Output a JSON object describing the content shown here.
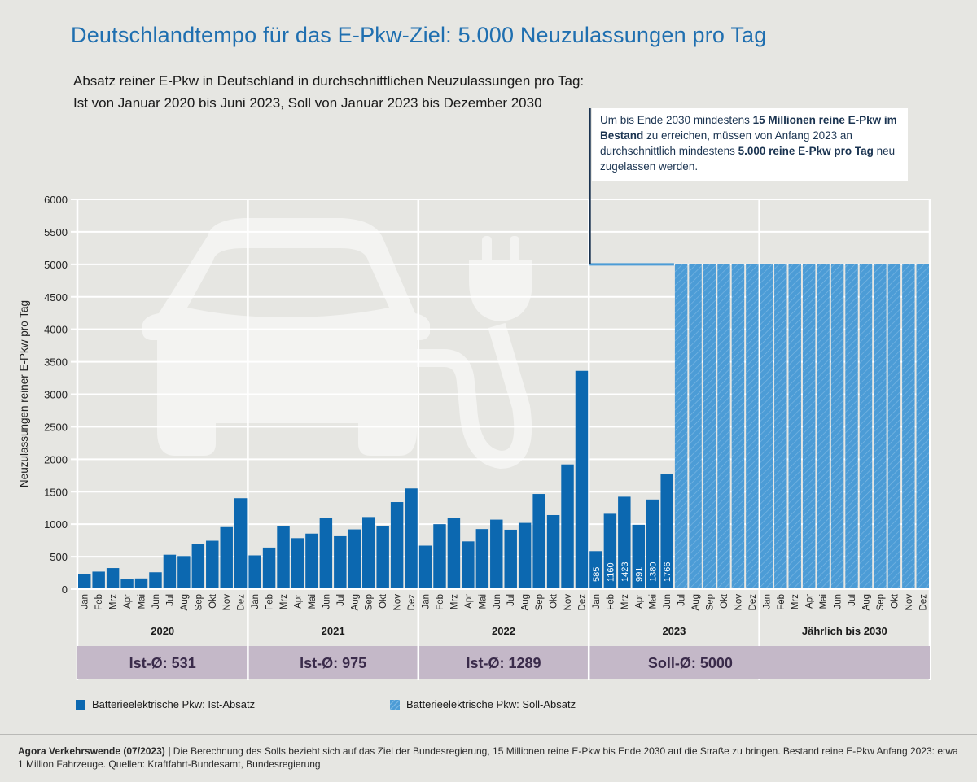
{
  "title": "Deutschlandtempo für das E-Pkw-Ziel: 5.000 Neuzulassungen pro Tag",
  "subtitle": "Absatz reiner E-Pkw in Deutschland in durchschnittlichen Neuzulassungen pro Tag: Ist von Januar 2020 bis Juni 2023, Soll von Januar 2023 bis Dezember 2030",
  "callout": {
    "p1": "Um bis Ende 2030 mindestens ",
    "b1": "15 Millionen reine E-Pkw im Bestand",
    "p2": " zu erreichen, müssen von Anfang 2023 an durchschnittlich mindestens ",
    "b2": "5.000 reine E-Pkw pro Tag",
    "p3": " neu zugelassen werden."
  },
  "colors": {
    "ist": "#0c68b0",
    "soll": "#4c9cd6",
    "averages_band": "#c4b8c8",
    "title": "#1f6fb0"
  },
  "chart_data": {
    "type": "bar",
    "ylabel": "Neuzulassungen reiner E-Pkw pro Tag",
    "ylim": [
      0,
      6000
    ],
    "yticks": [
      0,
      500,
      1000,
      1500,
      2000,
      2500,
      3000,
      3500,
      4000,
      4500,
      5000,
      5500,
      6000
    ],
    "grid": true,
    "month_labels": [
      "Jan",
      "Feb",
      "Mrz",
      "Apr",
      "Mai",
      "Jun",
      "Jul",
      "Aug",
      "Sep",
      "Okt",
      "Nov",
      "Dez"
    ],
    "groups": [
      {
        "name": "2020",
        "average": "Ist-Ø: 531"
      },
      {
        "name": "2021",
        "average": "Ist-Ø: 975"
      },
      {
        "name": "2022",
        "average": "Ist-Ø: 1289"
      },
      {
        "name": "2023",
        "average": "Soll-Ø: 5000"
      },
      {
        "name": "Jährlich bis 2030",
        "average": ""
      }
    ],
    "series": [
      {
        "name": "Batterieelektrische Pkw: Ist-Absatz",
        "values": [
          230,
          270,
          325,
          150,
          165,
          260,
          530,
          510,
          700,
          745,
          955,
          1400,
          520,
          640,
          965,
          785,
          855,
          1100,
          815,
          920,
          1110,
          970,
          1340,
          1550,
          670,
          1000,
          1100,
          735,
          925,
          1070,
          915,
          1020,
          1465,
          1140,
          1920,
          3360,
          585,
          1160,
          1423,
          991,
          1380,
          1766
        ],
        "labels_2023": [
          "585",
          "1160",
          "1423",
          "991",
          "1380",
          "1766"
        ]
      },
      {
        "name": "Batterieelektrische Pkw: Soll-Absatz",
        "values_2023_jul_dez": [
          5000,
          5000,
          5000,
          5000,
          5000,
          5000
        ],
        "values_yearly_to_2030": [
          5000,
          5000,
          5000,
          5000,
          5000,
          5000,
          5000,
          5000,
          5000,
          5000,
          5000,
          5000
        ],
        "target_line_2023_jan_jun": 5000
      }
    ]
  },
  "footer": {
    "source_bold": "Agora Verkehrswende (07/2023) |",
    "text": " Die Berechnung des Solls bezieht sich auf das Ziel der Bundesregierung, 15 Millionen reine E-Pkw bis Ende 2030 auf die Straße zu bringen. Bestand reine E-Pkw Anfang 2023: etwa 1 Million Fahrzeuge. Quellen: Kraftfahrt-Bundesamt, Bundesregierung"
  }
}
